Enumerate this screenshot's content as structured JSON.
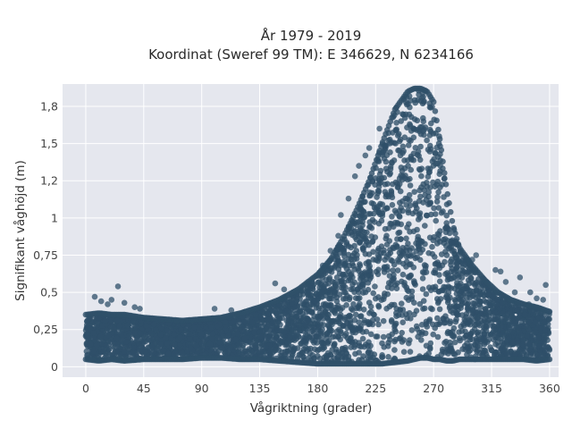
{
  "chart_data": {
    "type": "scatter",
    "title": "År 1979 - 2019",
    "subtitle": "Koordinat (Sweref 99 TM): E 346629, N 6234166",
    "xlabel": "Vågriktning (grader)",
    "ylabel": "Signifikant våghöjd (m)",
    "xlim": [
      -18,
      367
    ],
    "ylim": [
      -0.07,
      1.9
    ],
    "x_ticks": [
      {
        "value": 0,
        "label": "0"
      },
      {
        "value": 45,
        "label": "45"
      },
      {
        "value": 90,
        "label": "90"
      },
      {
        "value": 135,
        "label": "135"
      },
      {
        "value": 180,
        "label": "180"
      },
      {
        "value": 225,
        "label": "225"
      },
      {
        "value": 270,
        "label": "270"
      },
      {
        "value": 315,
        "label": "315"
      },
      {
        "value": 360,
        "label": "360"
      }
    ],
    "y_ticks": [
      {
        "value": 0,
        "label": "0"
      },
      {
        "value": 0.25,
        "label": "0,25"
      },
      {
        "value": 0.5,
        "label": "0,5"
      },
      {
        "value": 0.75,
        "label": "0,75"
      },
      {
        "value": 1.0,
        "label": "1"
      },
      {
        "value": 1.25,
        "label": "1,2"
      },
      {
        "value": 1.5,
        "label": "1,5"
      },
      {
        "value": 1.75,
        "label": "1,8"
      }
    ],
    "grid": true,
    "marker_color": "#2f5069",
    "plot_bg": "#e5e7ee",
    "envelope": {
      "direction": [
        0,
        10,
        20,
        30,
        45,
        60,
        75,
        90,
        105,
        120,
        135,
        150,
        165,
        180,
        190,
        200,
        210,
        220,
        230,
        240,
        250,
        255,
        260,
        265,
        270,
        275,
        280,
        285,
        290,
        300,
        310,
        320,
        330,
        340,
        350,
        360
      ],
      "max_height": [
        0.35,
        0.36,
        0.35,
        0.35,
        0.33,
        0.32,
        0.31,
        0.32,
        0.33,
        0.36,
        0.4,
        0.45,
        0.52,
        0.62,
        0.72,
        0.87,
        1.05,
        1.25,
        1.5,
        1.73,
        1.85,
        1.87,
        1.87,
        1.85,
        1.78,
        1.52,
        1.2,
        0.95,
        0.8,
        0.68,
        0.58,
        0.5,
        0.45,
        0.42,
        0.4,
        0.37
      ],
      "min_height": [
        0.05,
        0.04,
        0.05,
        0.04,
        0.05,
        0.05,
        0.05,
        0.06,
        0.06,
        0.05,
        0.05,
        0.04,
        0.03,
        0.02,
        0.02,
        0.02,
        0.02,
        0.02,
        0.02,
        0.03,
        0.04,
        0.05,
        0.06,
        0.06,
        0.05,
        0.05,
        0.04,
        0.04,
        0.05,
        0.05,
        0.05,
        0.05,
        0.05,
        0.05,
        0.04,
        0.05
      ]
    },
    "outliers": [
      {
        "x": 7,
        "y": 0.47
      },
      {
        "x": 12,
        "y": 0.44
      },
      {
        "x": 17,
        "y": 0.42
      },
      {
        "x": 20,
        "y": 0.45
      },
      {
        "x": 25,
        "y": 0.54
      },
      {
        "x": 30,
        "y": 0.43
      },
      {
        "x": 38,
        "y": 0.4
      },
      {
        "x": 42,
        "y": 0.39
      },
      {
        "x": 100,
        "y": 0.39
      },
      {
        "x": 113,
        "y": 0.38
      },
      {
        "x": 147,
        "y": 0.56
      },
      {
        "x": 154,
        "y": 0.52
      },
      {
        "x": 184,
        "y": 0.68
      },
      {
        "x": 190,
        "y": 0.78
      },
      {
        "x": 196,
        "y": 0.88
      },
      {
        "x": 198,
        "y": 1.02
      },
      {
        "x": 204,
        "y": 1.13
      },
      {
        "x": 209,
        "y": 1.28
      },
      {
        "x": 212,
        "y": 1.35
      },
      {
        "x": 217,
        "y": 1.42
      },
      {
        "x": 220,
        "y": 1.47
      },
      {
        "x": 228,
        "y": 1.6
      },
      {
        "x": 235,
        "y": 1.57
      },
      {
        "x": 300,
        "y": 0.72
      },
      {
        "x": 303,
        "y": 0.75
      },
      {
        "x": 318,
        "y": 0.65
      },
      {
        "x": 322,
        "y": 0.64
      },
      {
        "x": 326,
        "y": 0.57
      },
      {
        "x": 333,
        "y": 0.5
      },
      {
        "x": 337,
        "y": 0.6
      },
      {
        "x": 345,
        "y": 0.5
      },
      {
        "x": 350,
        "y": 0.46
      },
      {
        "x": 357,
        "y": 0.55
      },
      {
        "x": 355,
        "y": 0.45
      },
      {
        "x": 344,
        "y": 0.42
      }
    ]
  }
}
